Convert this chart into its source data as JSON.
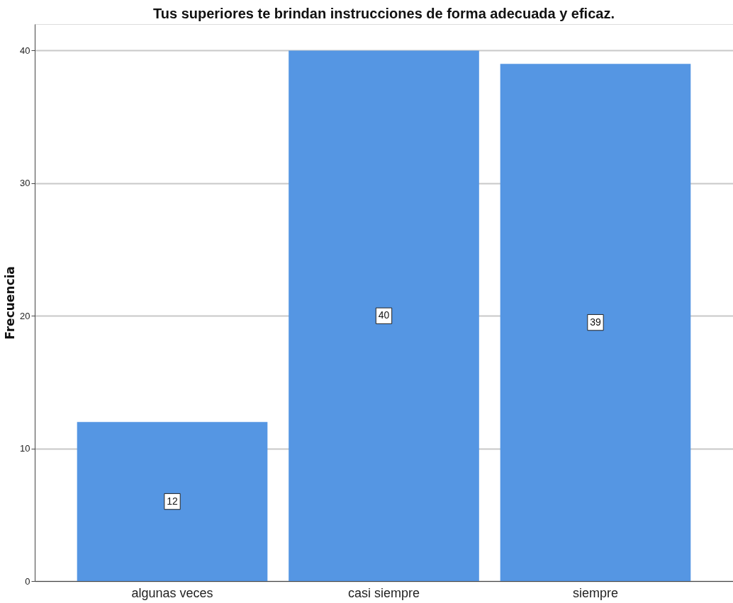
{
  "chart_data": {
    "type": "bar",
    "title": "Tus superiores te brindan instrucciones de forma adecuada y eficaz.",
    "ylabel": "Frecuencia",
    "categories": [
      "algunas veces",
      "casi siempre",
      "siempre"
    ],
    "values": [
      12,
      40,
      39
    ],
    "color": "#5596e3",
    "ylim": [
      0,
      42
    ],
    "yticks": [
      0,
      10,
      20,
      30,
      40
    ],
    "grid": "y",
    "data_labels": true
  }
}
